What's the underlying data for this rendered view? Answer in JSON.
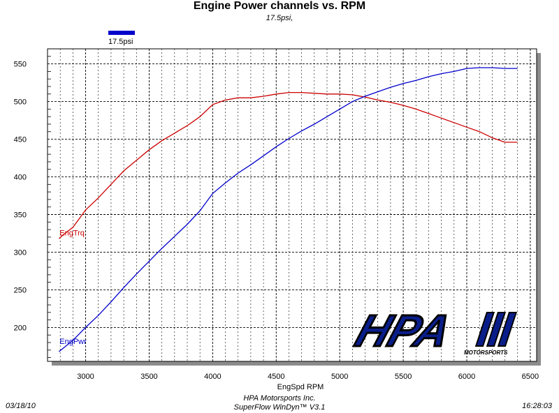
{
  "chart_data": {
    "type": "line",
    "title": "Engine Power channels vs. RPM",
    "subtitle": "17.5psi,",
    "legend": {
      "entries": [
        "17.5psi"
      ],
      "color": "#0000cc",
      "placement": "top-left"
    },
    "xlabel": "EngSpd RPM",
    "ylabel": "",
    "xlim": [
      2700,
      6550
    ],
    "ylim": [
      155,
      570
    ],
    "x_ticks": [
      3000,
      3500,
      4000,
      4500,
      5000,
      5500,
      6000,
      6500
    ],
    "y_ticks": [
      200,
      250,
      300,
      350,
      400,
      450,
      500,
      550
    ],
    "grid": true,
    "series": [
      {
        "name": "EngTrq",
        "color": "#cc0000",
        "x": [
          2790,
          2830,
          2900,
          3000,
          3100,
          3200,
          3300,
          3400,
          3500,
          3600,
          3700,
          3800,
          3900,
          4000,
          4100,
          4200,
          4300,
          4400,
          4500,
          4600,
          4700,
          4800,
          4900,
          5000,
          5100,
          5200,
          5300,
          5400,
          5500,
          5600,
          5700,
          5800,
          5900,
          6000,
          6100,
          6200,
          6300,
          6400
        ],
        "y": [
          318,
          324,
          333,
          356,
          372,
          390,
          408,
          422,
          436,
          448,
          458,
          468,
          480,
          496,
          502,
          505,
          505,
          507,
          510,
          512,
          512,
          511,
          510,
          510,
          509,
          506,
          502,
          499,
          495,
          490,
          484,
          478,
          472,
          466,
          460,
          452,
          446,
          446
        ]
      },
      {
        "name": "EngPwr",
        "color": "#0000cc",
        "x": [
          2790,
          2850,
          2900,
          3000,
          3100,
          3200,
          3300,
          3400,
          3500,
          3600,
          3700,
          3800,
          3900,
          4000,
          4100,
          4200,
          4300,
          4400,
          4500,
          4600,
          4700,
          4800,
          4900,
          5000,
          5100,
          5200,
          5300,
          5400,
          5500,
          5600,
          5700,
          5800,
          5900,
          6000,
          6100,
          6200,
          6300,
          6400
        ],
        "y": [
          168,
          176,
          183,
          200,
          216,
          234,
          253,
          271,
          288,
          305,
          321,
          337,
          355,
          378,
          392,
          405,
          416,
          428,
          440,
          451,
          461,
          470,
          480,
          490,
          500,
          507,
          513,
          519,
          524,
          528,
          533,
          537,
          540,
          544,
          545,
          545,
          544,
          544
        ]
      }
    ],
    "series_labels": [
      {
        "text": "EngTrq",
        "x": 2795,
        "y": 322,
        "color": "#cc0000"
      },
      {
        "text": "EngPwr",
        "x": 2795,
        "y": 178,
        "color": "#0000cc"
      }
    ]
  },
  "footer": {
    "date": "03/18/10",
    "time": "16:28:03",
    "company": "HPA Motorsports Inc.",
    "software": "SuperFlow WinDyn™ V3.1"
  },
  "logo": {
    "main_text": "HPA",
    "sub_text": "MOTORSPORTS"
  }
}
